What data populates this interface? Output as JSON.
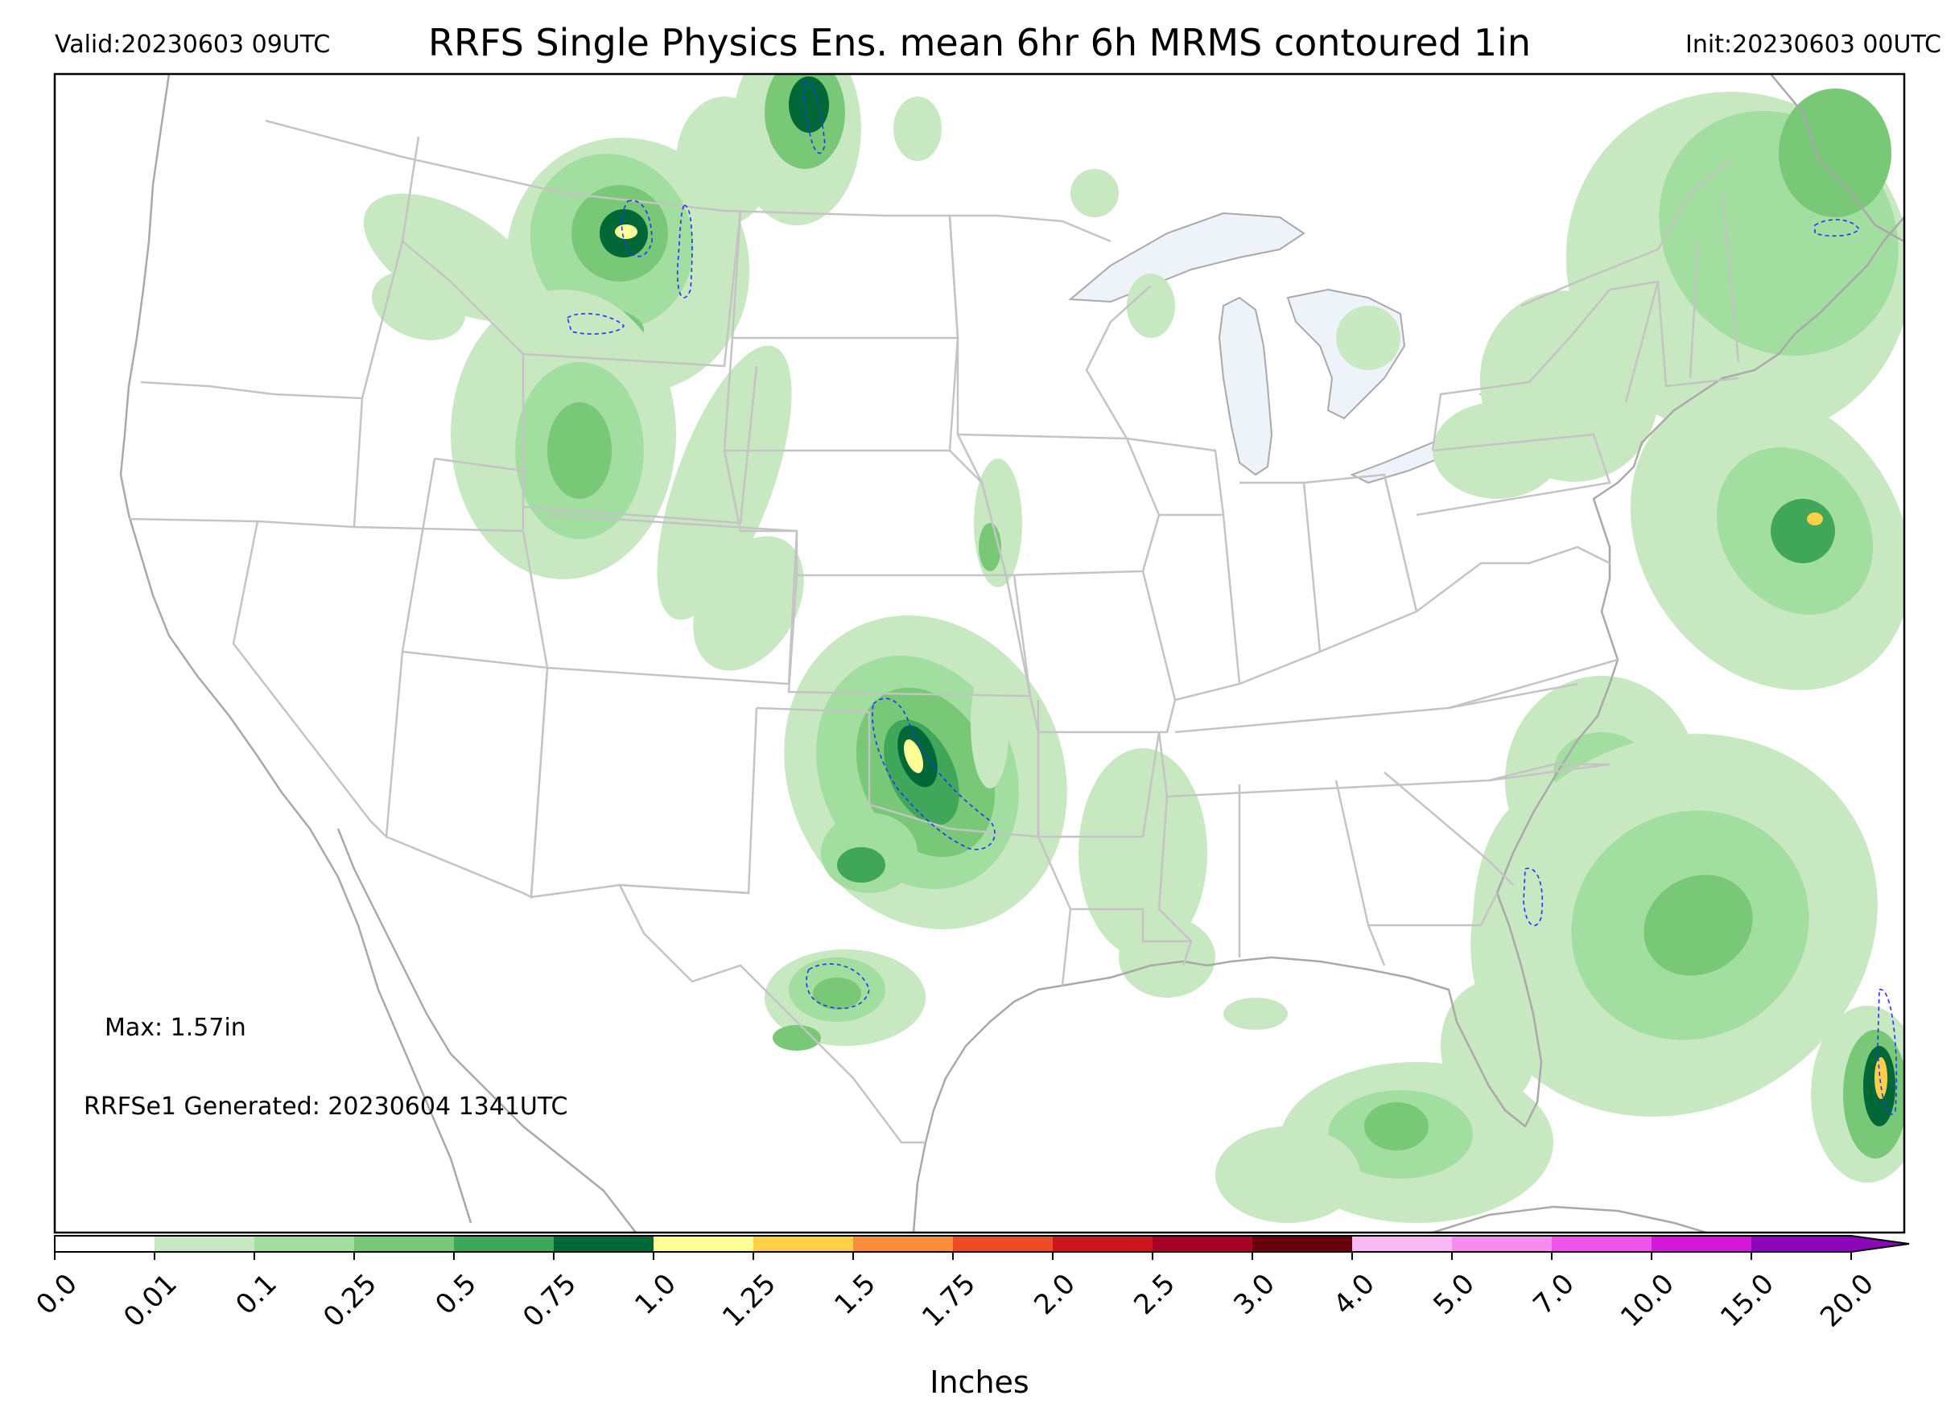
{
  "header": {
    "valid": "Valid:20230603 09UTC",
    "title": "RRFS Single Physics Ens. mean 6hr 6h MRMS contoured 1in",
    "init": "Init:20230603 00UTC"
  },
  "annotations": {
    "max": "Max: 1.57in",
    "generated": "RRFSe1 Generated: 20230604 1341UTC"
  },
  "colorbar": {
    "label": "Inches",
    "ticks": [
      "0.0",
      "0.01",
      "0.1",
      "0.25",
      "0.5",
      "0.75",
      "1.0",
      "1.25",
      "1.5",
      "1.75",
      "2.0",
      "2.5",
      "3.0",
      "4.0",
      "5.0",
      "7.0",
      "10.0",
      "15.0",
      "20.0"
    ],
    "colors": [
      "#ffffff",
      "#c8e8c2",
      "#a2dea0",
      "#78c878",
      "#3fa65a",
      "#006837",
      "#ffff99",
      "#fdd047",
      "#f88d3c",
      "#ef4a28",
      "#d0141c",
      "#a50026",
      "#67000d",
      "#f9b9f2",
      "#f58cf0",
      "#ef54e8",
      "#d319d8",
      "#8a06b8"
    ],
    "extend": "max"
  },
  "map": {
    "projection": "lambert-conformal CONUS",
    "contour_threshold": "1in",
    "colors": {
      "lake": "#eef3fa",
      "state_border": "#c4c4c4",
      "coast": "#a9a9a9",
      "mrms_contour": "#1f35ff"
    }
  }
}
